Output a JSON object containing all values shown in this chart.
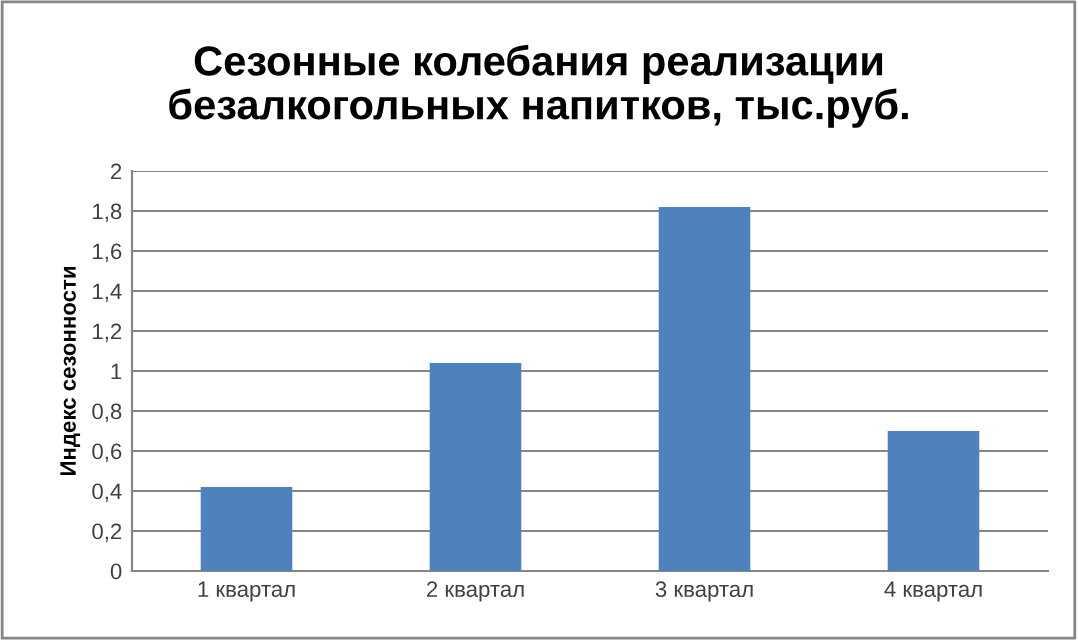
{
  "chart_data": {
    "type": "bar",
    "title": "Сезонные колебания реализации\nбезалкогольных напитков, тыс.руб.",
    "ylabel": "Индекс сезонности",
    "categories": [
      "1 квартал",
      "2 квартал",
      "3 квартал",
      "4 квартал"
    ],
    "values": [
      0.42,
      1.04,
      1.82,
      0.7
    ],
    "color": "#4f81bd",
    "ylim": [
      0,
      2
    ],
    "yticks": [
      {
        "value": 0,
        "label": "0"
      },
      {
        "value": 0.2,
        "label": "0,2"
      },
      {
        "value": 0.4,
        "label": "0,4"
      },
      {
        "value": 0.6,
        "label": "0,6"
      },
      {
        "value": 0.8,
        "label": "0,8"
      },
      {
        "value": 1,
        "label": "1"
      },
      {
        "value": 1.2,
        "label": "1,2"
      },
      {
        "value": 1.4,
        "label": "1,4"
      },
      {
        "value": 1.6,
        "label": "1,6"
      },
      {
        "value": 1.8,
        "label": "1,8"
      },
      {
        "value": 2,
        "label": "2"
      }
    ],
    "grid": "y",
    "legend": false
  }
}
